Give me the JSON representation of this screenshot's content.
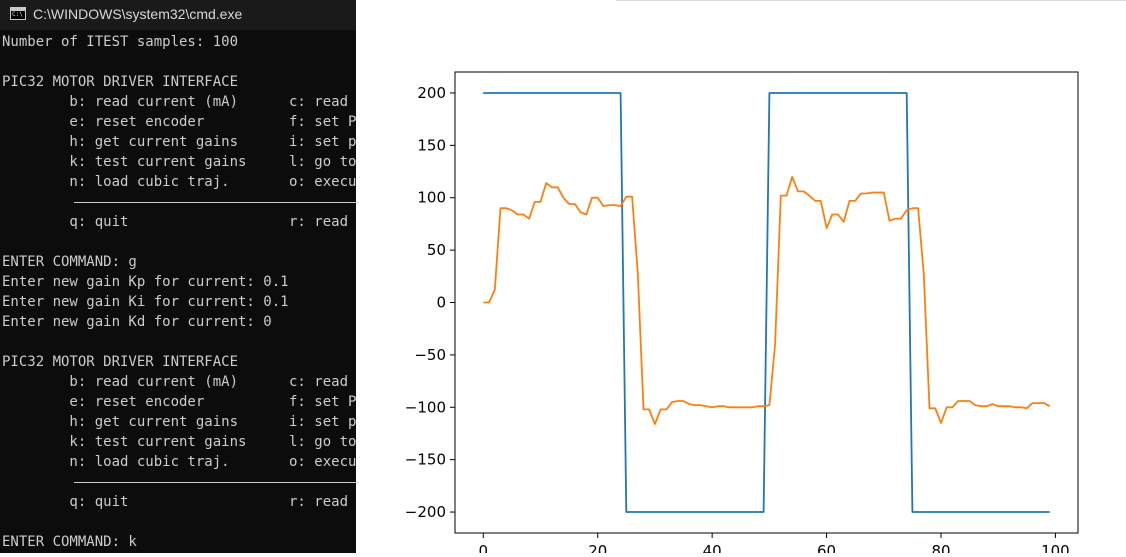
{
  "cmd": {
    "title": "C:\\WINDOWS\\system32\\cmd.exe",
    "lines": [
      {
        "a": "Number of ITEST samples: 100"
      },
      {
        "a": ""
      },
      {
        "a": "PIC32 MOTOR DRIVER INTERFACE"
      },
      {
        "a": "        b: read current (mA)",
        "b": "c: read"
      },
      {
        "a": "        e: reset encoder",
        "b": "f: set P"
      },
      {
        "a": "        h: get current gains",
        "b": "i: set p"
      },
      {
        "a": "        k: test current gains",
        "b": "l: go to"
      },
      {
        "a": "        n: load cubic traj.",
        "b": "o: execu"
      },
      {
        "a": "",
        "rule": true
      },
      {
        "a": "        q: quit",
        "b": "r: read"
      },
      {
        "a": ""
      },
      {
        "a": "ENTER COMMAND: g"
      },
      {
        "a": "Enter new gain Kp for current: 0.1"
      },
      {
        "a": "Enter new gain Ki for current: 0.1"
      },
      {
        "a": "Enter new gain Kd for current: 0"
      },
      {
        "a": ""
      },
      {
        "a": "PIC32 MOTOR DRIVER INTERFACE"
      },
      {
        "a": "        b: read current (mA)",
        "b": "c: read"
      },
      {
        "a": "        e: reset encoder",
        "b": "f: set P"
      },
      {
        "a": "        h: get current gains",
        "b": "i: set p"
      },
      {
        "a": "        k: test current gains",
        "b": "l: go to"
      },
      {
        "a": "        n: load cubic traj.",
        "b": "o: execu"
      },
      {
        "a": "",
        "rule": true
      },
      {
        "a": "        q: quit",
        "b": "r: read"
      },
      {
        "a": ""
      },
      {
        "a": "ENTER COMMAND: k"
      }
    ]
  },
  "chart_data": {
    "type": "line",
    "xlim": [
      -4.95,
      103.95
    ],
    "ylim": [
      -220,
      220
    ],
    "xticks": [
      0,
      20,
      40,
      60,
      80,
      100
    ],
    "xtick_labels": [
      "0",
      "20",
      "40",
      "60",
      "80",
      "100"
    ],
    "yticks": [
      200,
      150,
      100,
      50,
      0,
      -50,
      -100,
      -150,
      -200
    ],
    "ytick_labels": [
      "200",
      "150",
      "100",
      "50",
      "0",
      "−50",
      "−100",
      "−150",
      "−200"
    ],
    "grid": false,
    "series": [
      {
        "color": "#1f77b4",
        "x": [
          0,
          24,
          25,
          49,
          50,
          74,
          75,
          99
        ],
        "y": [
          200,
          200,
          -200,
          -200,
          200,
          200,
          -200,
          -200
        ]
      },
      {
        "color": "#ff7f0e",
        "x": [
          0,
          1,
          2,
          3,
          4,
          5,
          6,
          7,
          8,
          9,
          10,
          11,
          12,
          13,
          14,
          15,
          16,
          17,
          18,
          19,
          20,
          21,
          22,
          23,
          24,
          25,
          26,
          27,
          28,
          29,
          30,
          31,
          32,
          33,
          34,
          35,
          36,
          37,
          38,
          39,
          40,
          41,
          42,
          43,
          44,
          45,
          46,
          47,
          48,
          49,
          50,
          51,
          52,
          53,
          54,
          55,
          56,
          57,
          58,
          59,
          60,
          61,
          62,
          63,
          64,
          65,
          66,
          67,
          68,
          69,
          70,
          71,
          72,
          73,
          74,
          75,
          76,
          77,
          78,
          79,
          80,
          81,
          82,
          83,
          84,
          85,
          86,
          87,
          88,
          89,
          90,
          91,
          92,
          93,
          94,
          95,
          96,
          97,
          98,
          99
        ],
        "y": [
          0,
          0,
          12,
          90,
          90,
          88,
          84,
          84,
          80,
          96,
          96,
          114,
          110,
          110,
          100,
          94,
          94,
          86,
          84,
          100,
          100,
          92,
          93,
          93,
          92,
          101,
          101,
          28,
          -102,
          -102,
          -116,
          -102,
          -102,
          -95,
          -94,
          -94,
          -97,
          -98,
          -98,
          -99,
          -100,
          -99,
          -99,
          -100,
          -100,
          -100,
          -100,
          -100,
          -99,
          -99,
          -98,
          -40,
          102,
          102,
          120,
          106,
          106,
          102,
          97,
          97,
          71,
          84,
          84,
          77,
          97,
          97,
          104,
          104,
          105,
          105,
          105,
          78,
          80,
          80,
          88,
          90,
          90,
          27,
          -101,
          -101,
          -115,
          -100,
          -100,
          -94,
          -94,
          -94,
          -98,
          -99,
          -99,
          -97,
          -99,
          -99,
          -99,
          -100,
          -100,
          -101,
          -96,
          -96,
          -96,
          -99
        ]
      }
    ]
  }
}
